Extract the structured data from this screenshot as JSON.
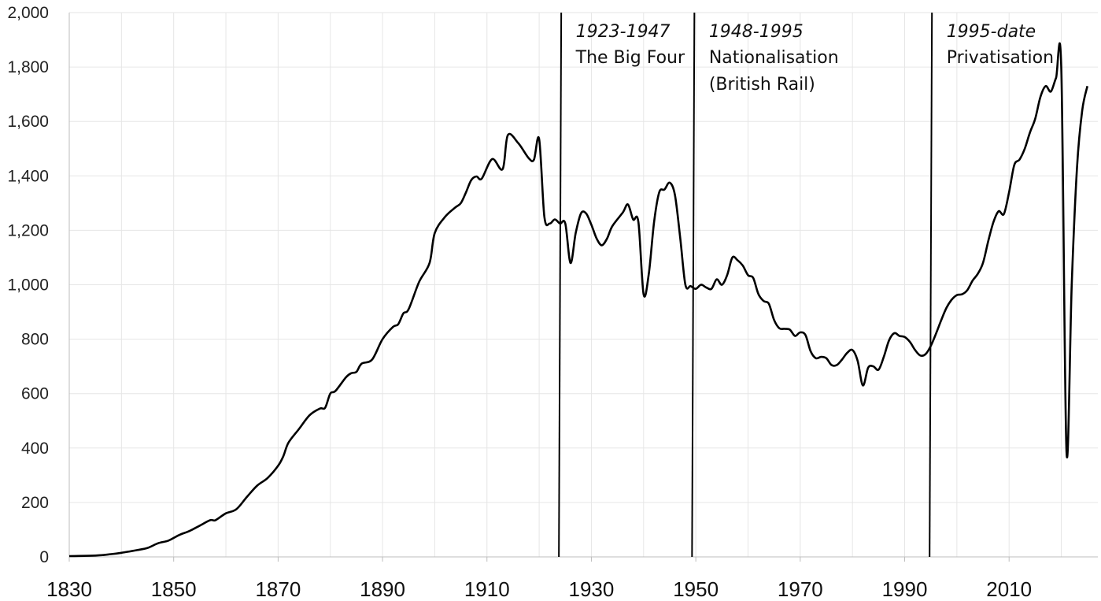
{
  "chart_data": {
    "type": "line",
    "title": "",
    "xlabel": "",
    "ylabel": "",
    "xlim": [
      1830,
      2027
    ],
    "ylim": [
      0,
      2000
    ],
    "grid": true,
    "x_ticks": [
      "1830",
      "1850",
      "1870",
      "1890",
      "1910",
      "1930",
      "1950",
      "1970",
      "1990",
      "2010"
    ],
    "y_ticks": [
      "0",
      "200",
      "400",
      "600",
      "800",
      "1,000",
      "1,200",
      "1,400",
      "1,600",
      "1,800",
      "2,000"
    ],
    "series": [
      {
        "points": [
          [
            1830,
            3
          ],
          [
            1835,
            5
          ],
          [
            1838,
            10
          ],
          [
            1840,
            15
          ],
          [
            1843,
            25
          ],
          [
            1845,
            33
          ],
          [
            1847,
            50
          ],
          [
            1849,
            60
          ],
          [
            1851,
            80
          ],
          [
            1853,
            95
          ],
          [
            1855,
            115
          ],
          [
            1857,
            135
          ],
          [
            1858,
            135
          ],
          [
            1860,
            160
          ],
          [
            1862,
            175
          ],
          [
            1864,
            220
          ],
          [
            1866,
            262
          ],
          [
            1868,
            290
          ],
          [
            1870,
            335
          ],
          [
            1871,
            370
          ],
          [
            1872,
            420
          ],
          [
            1874,
            470
          ],
          [
            1876,
            520
          ],
          [
            1878,
            545
          ],
          [
            1879,
            548
          ],
          [
            1880,
            600
          ],
          [
            1881,
            610
          ],
          [
            1883,
            660
          ],
          [
            1884,
            675
          ],
          [
            1885,
            680
          ],
          [
            1886,
            710
          ],
          [
            1888,
            725
          ],
          [
            1890,
            800
          ],
          [
            1892,
            845
          ],
          [
            1893,
            855
          ],
          [
            1894,
            895
          ],
          [
            1895,
            910
          ],
          [
            1897,
            1010
          ],
          [
            1899,
            1080
          ],
          [
            1900,
            1190
          ],
          [
            1902,
            1250
          ],
          [
            1904,
            1285
          ],
          [
            1905,
            1300
          ],
          [
            1906,
            1340
          ],
          [
            1907,
            1385
          ],
          [
            1908,
            1398
          ],
          [
            1909,
            1390
          ],
          [
            1911,
            1462
          ],
          [
            1913,
            1425
          ],
          [
            1914,
            1550
          ],
          [
            1916,
            1520
          ],
          [
            1918,
            1465
          ],
          [
            1919,
            1460
          ],
          [
            1920,
            1535
          ],
          [
            1921,
            1250
          ],
          [
            1922,
            1225
          ],
          [
            1923,
            1240
          ],
          [
            1924,
            1225
          ],
          [
            1925,
            1225
          ],
          [
            1926,
            1080
          ],
          [
            1927,
            1190
          ],
          [
            1928,
            1262
          ],
          [
            1929,
            1262
          ],
          [
            1930,
            1220
          ],
          [
            1931,
            1170
          ],
          [
            1932,
            1145
          ],
          [
            1933,
            1170
          ],
          [
            1934,
            1215
          ],
          [
            1936,
            1265
          ],
          [
            1937,
            1295
          ],
          [
            1938,
            1240
          ],
          [
            1939,
            1230
          ],
          [
            1940,
            965
          ],
          [
            1941,
            1040
          ],
          [
            1942,
            1230
          ],
          [
            1943,
            1340
          ],
          [
            1944,
            1350
          ],
          [
            1945,
            1375
          ],
          [
            1946,
            1330
          ],
          [
            1947,
            1175
          ],
          [
            1948,
            1000
          ],
          [
            1949,
            995
          ],
          [
            1950,
            985
          ],
          [
            1951,
            1000
          ],
          [
            1952,
            990
          ],
          [
            1953,
            985
          ],
          [
            1954,
            1020
          ],
          [
            1955,
            1000
          ],
          [
            1956,
            1035
          ],
          [
            1957,
            1100
          ],
          [
            1958,
            1090
          ],
          [
            1959,
            1070
          ],
          [
            1960,
            1035
          ],
          [
            1961,
            1025
          ],
          [
            1962,
            965
          ],
          [
            1963,
            940
          ],
          [
            1964,
            930
          ],
          [
            1965,
            870
          ],
          [
            1966,
            840
          ],
          [
            1967,
            838
          ],
          [
            1968,
            835
          ],
          [
            1969,
            812
          ],
          [
            1970,
            825
          ],
          [
            1971,
            815
          ],
          [
            1972,
            755
          ],
          [
            1973,
            730
          ],
          [
            1974,
            735
          ],
          [
            1975,
            730
          ],
          [
            1976,
            705
          ],
          [
            1977,
            705
          ],
          [
            1978,
            725
          ],
          [
            1979,
            750
          ],
          [
            1980,
            760
          ],
          [
            1981,
            720
          ],
          [
            1982,
            630
          ],
          [
            1983,
            695
          ],
          [
            1984,
            700
          ],
          [
            1985,
            688
          ],
          [
            1986,
            735
          ],
          [
            1987,
            795
          ],
          [
            1988,
            822
          ],
          [
            1989,
            812
          ],
          [
            1990,
            808
          ],
          [
            1991,
            790
          ],
          [
            1992,
            760
          ],
          [
            1993,
            740
          ],
          [
            1994,
            745
          ],
          [
            1995,
            775
          ],
          [
            1996,
            820
          ],
          [
            1997,
            870
          ],
          [
            1998,
            915
          ],
          [
            1999,
            945
          ],
          [
            2000,
            962
          ],
          [
            2001,
            965
          ],
          [
            2002,
            980
          ],
          [
            2003,
            1015
          ],
          [
            2004,
            1040
          ],
          [
            2005,
            1080
          ],
          [
            2006,
            1160
          ],
          [
            2007,
            1230
          ],
          [
            2008,
            1270
          ],
          [
            2009,
            1260
          ],
          [
            2010,
            1340
          ],
          [
            2011,
            1440
          ],
          [
            2012,
            1460
          ],
          [
            2013,
            1500
          ],
          [
            2014,
            1560
          ],
          [
            2015,
            1610
          ],
          [
            2016,
            1690
          ],
          [
            2017,
            1730
          ],
          [
            2018,
            1710
          ],
          [
            2019,
            1760
          ],
          [
            2020,
            1790
          ],
          [
            2021,
            385
          ],
          [
            2022,
            1000
          ],
          [
            2023,
            1430
          ],
          [
            2024,
            1640
          ],
          [
            2025,
            1730
          ]
        ]
      }
    ],
    "eras": [
      {
        "year": 1924,
        "label_year": "1923-1947",
        "label_lines": [
          "The Big Four"
        ]
      },
      {
        "year": 1949.5,
        "label_year": "1948-1995",
        "label_lines": [
          "Nationalisation",
          "(British Rail)"
        ]
      },
      {
        "year": 1995,
        "label_year": "1995-date",
        "label_lines": [
          "Privatisation"
        ]
      }
    ]
  }
}
